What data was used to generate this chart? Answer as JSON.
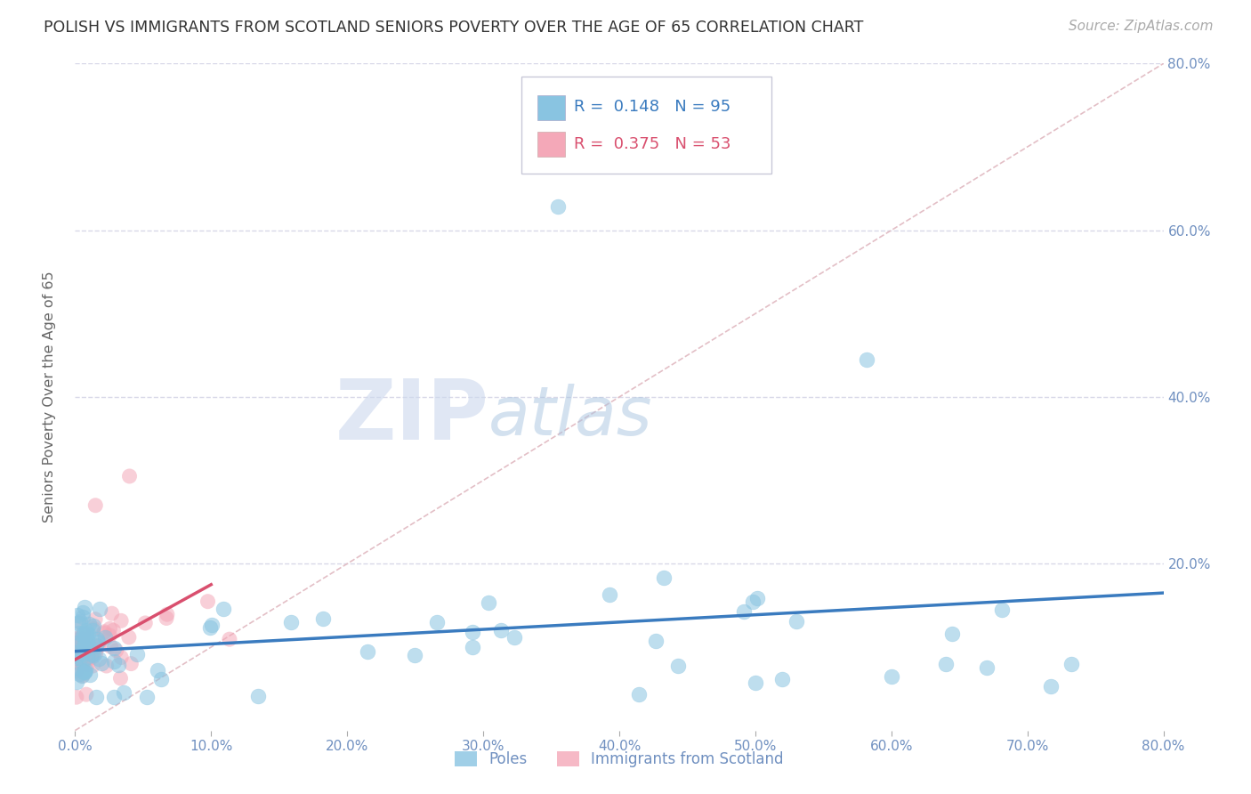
{
  "title": "POLISH VS IMMIGRANTS FROM SCOTLAND SENIORS POVERTY OVER THE AGE OF 65 CORRELATION CHART",
  "source": "Source: ZipAtlas.com",
  "ylabel": "Seniors Poverty Over the Age of 65",
  "poles_color": "#89c4e1",
  "scotland_color": "#f4a8b8",
  "poles_line_color": "#3a7bbf",
  "scotland_line_color": "#d94f6e",
  "diagonal_color": "#e0b8c0",
  "background_color": "#ffffff",
  "grid_color": "#d8d8e8",
  "tick_color": "#7090c0",
  "ytick_labels": [
    "80.0%",
    "60.0%",
    "40.0%",
    "20.0%"
  ],
  "ytick_positions": [
    0.8,
    0.6,
    0.4,
    0.2
  ],
  "xtick_positions": [
    0.0,
    0.1,
    0.2,
    0.3,
    0.4,
    0.5,
    0.6,
    0.7,
    0.8
  ],
  "xtick_labels": [
    "0.0%",
    "10.0%",
    "20.0%",
    "30.0%",
    "40.0%",
    "50.0%",
    "60.0%",
    "70.0%",
    "80.0%"
  ],
  "legend_r1": "0.148",
  "legend_n1": "95",
  "legend_r2": "0.375",
  "legend_n2": "53",
  "watermark_zip": "ZIP",
  "watermark_atlas": "atlas",
  "poles_legend": "Poles",
  "scotland_legend": "Immigrants from Scotland"
}
